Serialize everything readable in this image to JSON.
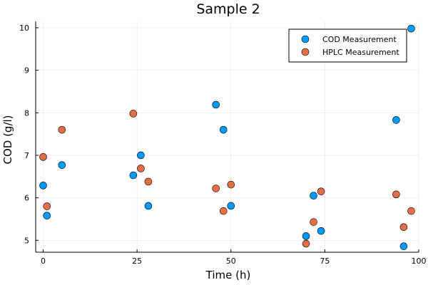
{
  "chart_data": {
    "type": "scatter",
    "title": "Sample 2",
    "xlabel": "Time (h)",
    "ylabel": "COD (g/l)",
    "xlim": [
      -2,
      100
    ],
    "ylim": [
      4.72,
      10.15
    ],
    "xticks": [
      0,
      25,
      50,
      75,
      100
    ],
    "yticks": [
      5,
      6,
      7,
      8,
      9,
      10
    ],
    "grid": true,
    "legend_position": "top-right",
    "series": [
      {
        "name": "COD Measurement",
        "color": "#009AF9",
        "points": [
          {
            "x": 0,
            "y": 6.29
          },
          {
            "x": 1,
            "y": 5.58
          },
          {
            "x": 5,
            "y": 6.77
          },
          {
            "x": 24,
            "y": 6.53
          },
          {
            "x": 26,
            "y": 7.0
          },
          {
            "x": 28,
            "y": 5.81
          },
          {
            "x": 46,
            "y": 8.19
          },
          {
            "x": 48,
            "y": 7.6
          },
          {
            "x": 50,
            "y": 5.81
          },
          {
            "x": 70,
            "y": 5.1
          },
          {
            "x": 72,
            "y": 6.05
          },
          {
            "x": 74,
            "y": 5.22
          },
          {
            "x": 94,
            "y": 7.83
          },
          {
            "x": 96,
            "y": 4.86
          },
          {
            "x": 98,
            "y": 9.98
          }
        ]
      },
      {
        "name": "HPLC Measurement",
        "color": "#E26F46",
        "points": [
          {
            "x": 0,
            "y": 6.96
          },
          {
            "x": 1,
            "y": 5.8
          },
          {
            "x": 5,
            "y": 7.6
          },
          {
            "x": 24,
            "y": 7.98
          },
          {
            "x": 26,
            "y": 6.69
          },
          {
            "x": 28,
            "y": 6.38
          },
          {
            "x": 46,
            "y": 6.22
          },
          {
            "x": 48,
            "y": 5.69
          },
          {
            "x": 50,
            "y": 6.31
          },
          {
            "x": 70,
            "y": 4.92
          },
          {
            "x": 72,
            "y": 5.43
          },
          {
            "x": 74,
            "y": 6.15
          },
          {
            "x": 94,
            "y": 6.08
          },
          {
            "x": 96,
            "y": 5.31
          },
          {
            "x": 98,
            "y": 5.69
          }
        ]
      }
    ]
  }
}
